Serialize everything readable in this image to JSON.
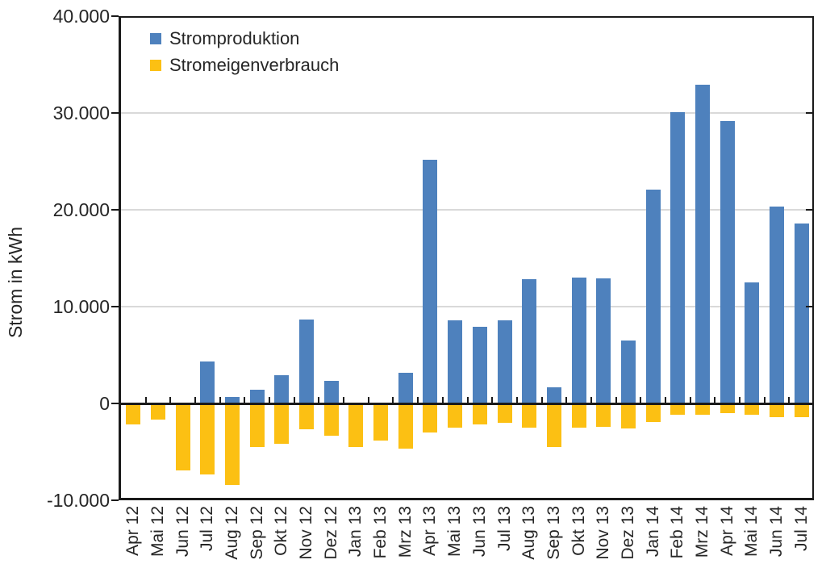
{
  "chart_data": {
    "type": "bar",
    "title": "",
    "xlabel": "",
    "ylabel": "Strom in kWh",
    "ylim": [
      -10000,
      40000
    ],
    "ytick_interval": 10000,
    "yticks": [
      40000,
      30000,
      20000,
      10000,
      0,
      -10000
    ],
    "ytick_labels": [
      "40.000",
      "30.000",
      "20.000",
      "10.000",
      "0",
      "-10.000"
    ],
    "grid": true,
    "legend_position": "top-left-inside",
    "categories": [
      "Apr 12",
      "Mai 12",
      "Jun 12",
      "Jul 12",
      "Aug 12",
      "Sep 12",
      "Okt 12",
      "Nov 12",
      "Dez 12",
      "Jan 13",
      "Feb 13",
      "Mrz 13",
      "Apr 13",
      "Mai 13",
      "Jun 13",
      "Jul 13",
      "Aug 13",
      "Sep 13",
      "Okt 13",
      "Nov 13",
      "Dez 13",
      "Jan 14",
      "Feb 14",
      "Mrz 14",
      "Apr 14",
      "Mai 14",
      "Jun 14",
      "Jul 14"
    ],
    "series": [
      {
        "name": "Stromproduktion",
        "color": "#4E81BD",
        "values": [
          0,
          0,
          0,
          4300,
          700,
          1400,
          2900,
          8700,
          2300,
          0,
          0,
          3200,
          25200,
          8600,
          7900,
          8600,
          12800,
          1700,
          13000,
          12900,
          6500,
          22100,
          30100,
          32900,
          29200,
          12500,
          20300,
          18600
        ]
      },
      {
        "name": "Stromeigenverbrauch",
        "color": "#FCC013",
        "values": [
          -2200,
          -1700,
          -6900,
          -7300,
          -8400,
          -4500,
          -4200,
          -2700,
          -3300,
          -4500,
          -3800,
          -4700,
          -3000,
          -2500,
          -2200,
          -2000,
          -2500,
          -4500,
          -2500,
          -2400,
          -2600,
          -1900,
          -1200,
          -1200,
          -1000,
          -1200,
          -1400,
          -1400
        ]
      }
    ]
  },
  "axis": {
    "y_title": "Strom in kWh"
  },
  "colors": {
    "axis": "#1a1a1a",
    "gridline": "#d9d9d9",
    "text": "#262626",
    "stromproduktion": "#4E81BD",
    "stromeigenverbrauch": "#FCC013",
    "background": "#ffffff"
  }
}
